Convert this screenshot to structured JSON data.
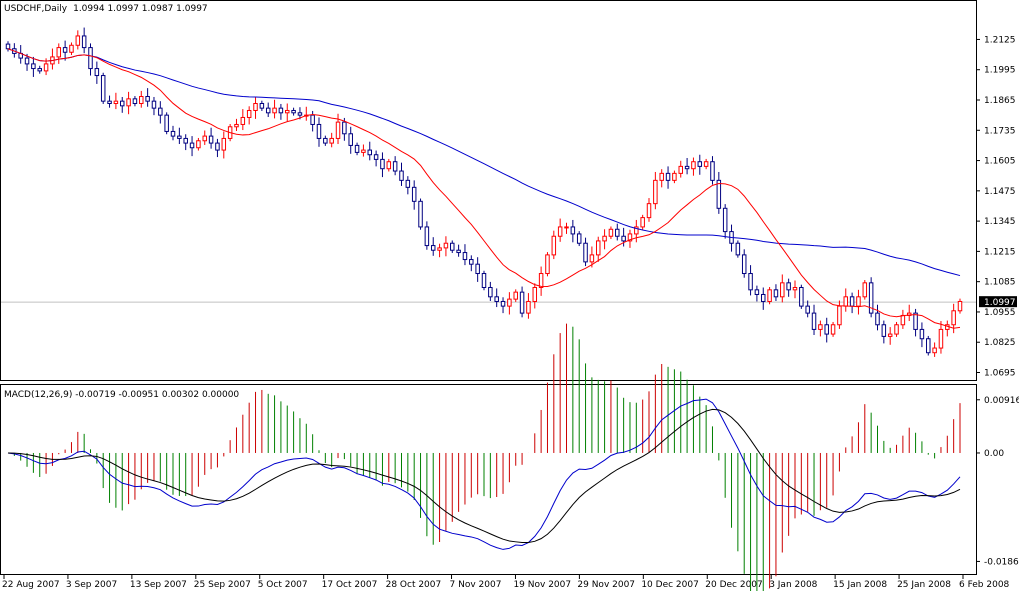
{
  "colors": {
    "background": "#ffffff",
    "frame": "#000000",
    "bull": "#ff0000",
    "bear": "#000080",
    "ma_fast": "#ff0000",
    "ma_slow": "#0000cc",
    "histogram_up": "#cc0000",
    "histogram_down": "#008000",
    "macd_line": "#0000cc",
    "signal_line": "#000000",
    "price_line": "#c0c0c0",
    "price_tag_bg": "#000000",
    "price_tag_text": "#ffffff"
  },
  "header": {
    "symbol_label": "USDCHF,Daily",
    "ohlc_label": "1.0994 1.0997 1.0987 1.0997"
  },
  "macd_header": {
    "label": "MACD(12,26,9) -0.00719 -0.00951 0.00302 0.00000"
  },
  "chart_data": [
    {
      "type": "candlestick",
      "symbol": "USDCHF",
      "timeframe": "Daily",
      "ylim": [
        1.068,
        1.226
      ],
      "y_ticks": [
        "1.2125",
        "1.1995",
        "1.1865",
        "1.1735",
        "1.1605",
        "1.1475",
        "1.1345",
        "1.1215",
        "1.1085",
        "1.0955",
        "1.0825",
        "1.0695"
      ],
      "current_price": "1.0997",
      "x_ticks": [
        "22 Aug 2007",
        "3 Sep 2007",
        "13 Sep 2007",
        "25 Sep 2007",
        "5 Oct 2007",
        "17 Oct 2007",
        "28 Oct 2007",
        "7 Nov 2007",
        "19 Nov 2007",
        "29 Nov 2007",
        "10 Dec 2007",
        "20 Dec 2007",
        "3 Jan 2008",
        "15 Jan 2008",
        "25 Jan 2008",
        "6 Feb 2008"
      ],
      "close": [
        1.2085,
        1.2065,
        1.2045,
        1.202,
        1.2,
        1.199,
        1.202,
        1.205,
        1.209,
        1.207,
        1.21,
        1.214,
        1.209,
        1.2,
        1.197,
        1.186,
        1.185,
        1.186,
        1.184,
        1.187,
        1.185,
        1.188,
        1.186,
        1.183,
        1.18,
        1.173,
        1.171,
        1.17,
        1.168,
        1.166,
        1.169,
        1.171,
        1.168,
        1.165,
        1.17,
        1.175,
        1.176,
        1.179,
        1.182,
        1.185,
        1.183,
        1.181,
        1.183,
        1.181,
        1.182,
        1.181,
        1.18,
        1.18,
        1.176,
        1.17,
        1.168,
        1.17,
        1.177,
        1.172,
        1.167,
        1.164,
        1.165,
        1.163,
        1.161,
        1.157,
        1.16,
        1.156,
        1.152,
        1.149,
        1.143,
        1.132,
        1.124,
        1.122,
        1.123,
        1.125,
        1.122,
        1.121,
        1.118,
        1.116,
        1.112,
        1.106,
        1.102,
        1.1,
        1.098,
        1.101,
        1.104,
        1.095,
        1.1,
        1.106,
        1.112,
        1.12,
        1.128,
        1.132,
        1.132,
        1.129,
        1.125,
        1.117,
        1.12,
        1.126,
        1.128,
        1.131,
        1.128,
        1.126,
        1.129,
        1.132,
        1.136,
        1.142,
        1.152,
        1.155,
        1.152,
        1.155,
        1.158,
        1.157,
        1.16,
        1.158,
        1.16,
        1.152,
        1.14,
        1.13,
        1.125,
        1.12,
        1.112,
        1.105,
        1.103,
        1.1,
        1.105,
        1.102,
        1.108,
        1.105,
        1.106,
        1.098,
        1.095,
        1.088,
        1.09,
        1.086,
        1.09,
        1.098,
        1.102,
        1.098,
        1.102,
        1.108,
        1.095,
        1.09,
        1.085,
        1.086,
        1.09,
        1.094,
        1.095,
        1.088,
        1.084,
        1.078,
        1.08,
        1.088,
        1.09,
        1.096,
        1.1
      ]
    },
    {
      "type": "macd",
      "params": "12,26,9",
      "ylim": [
        -0.0205,
        0.0105
      ],
      "y_ticks": [
        "0.00916",
        "0.00",
        "-0.01868"
      ]
    }
  ]
}
